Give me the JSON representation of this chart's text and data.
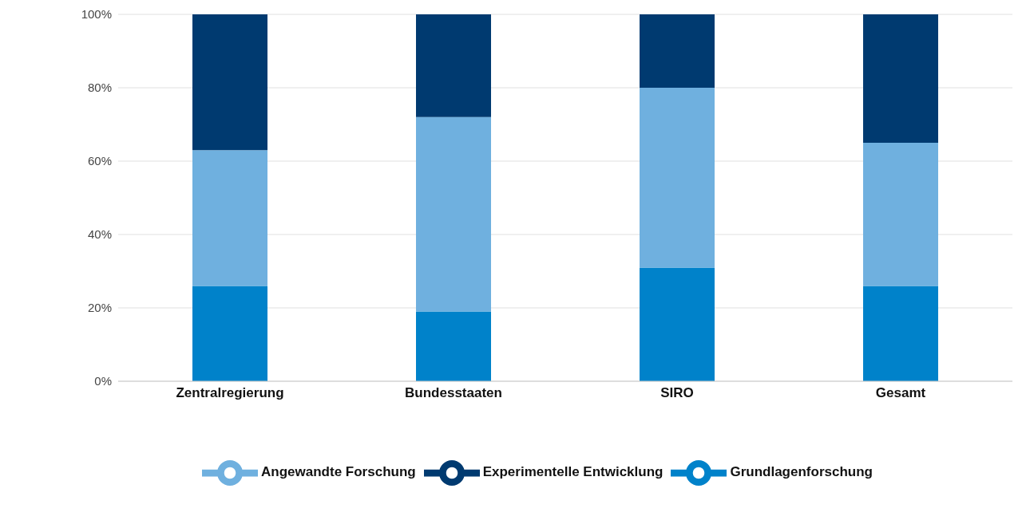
{
  "chart_data": {
    "type": "bar",
    "stacked": true,
    "categories": [
      "Zentralregierung",
      "Bundesstaaten",
      "SIRO",
      "Gesamt"
    ],
    "series": [
      {
        "name": "Grundlagenforschung",
        "color": "#0082ca",
        "values": [
          26,
          19,
          31,
          26
        ]
      },
      {
        "name": "Angewandte Forschung",
        "color": "#6fb0df",
        "values": [
          37,
          53,
          49,
          39
        ]
      },
      {
        "name": "Experimentelle Entwicklung",
        "color": "#003a70",
        "values": [
          37,
          28,
          20,
          35
        ]
      }
    ],
    "ylim": [
      0,
      100
    ],
    "yticks": [
      {
        "value": 0,
        "label": "0%"
      },
      {
        "value": 20,
        "label": "20%"
      },
      {
        "value": 40,
        "label": "40%"
      },
      {
        "value": 60,
        "label": "60%"
      },
      {
        "value": 80,
        "label": "80%"
      },
      {
        "value": 100,
        "label": "100%"
      }
    ],
    "grid": "y",
    "legend": "bottom"
  }
}
